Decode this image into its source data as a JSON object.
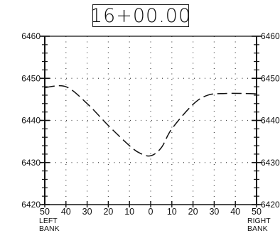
{
  "chart_data": {
    "type": "line",
    "title": "16+00.00",
    "xlabel_left": "LEFT BANK",
    "xlabel_right": "RIGHT BANK",
    "x_tick_labels": [
      "50",
      "40",
      "30",
      "20",
      "10",
      "0",
      "10",
      "20",
      "30",
      "40",
      "50"
    ],
    "y_ticks": [
      6420,
      6430,
      6440,
      6450,
      6460
    ],
    "x_ticks": [
      -50,
      -40,
      -30,
      -20,
      -10,
      0,
      10,
      20,
      30,
      40,
      50
    ],
    "xlim": [
      -50,
      50
    ],
    "ylim": [
      6420,
      6460
    ],
    "grid": true,
    "line_style": "dashed",
    "series": [
      {
        "x": [
          -50,
          -40,
          -30,
          -20,
          -10,
          -5,
          0,
          5,
          10,
          20,
          27,
          35,
          45,
          50
        ],
        "y": [
          6447.8,
          6448.0,
          6444.0,
          6438.8,
          6434.0,
          6432.2,
          6431.6,
          6433.5,
          6438.0,
          6443.8,
          6446.0,
          6446.4,
          6446.4,
          6446.3
        ]
      }
    ]
  }
}
